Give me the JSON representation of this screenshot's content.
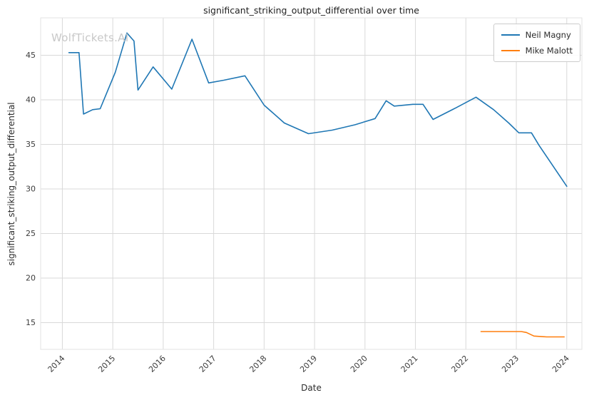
{
  "watermark": "WolfTickets.AI",
  "chart_data": {
    "type": "line",
    "title": "significant_striking_output_differential over time",
    "xlabel": "Date",
    "ylabel": "significant_striking_output_differential",
    "grid": true,
    "legend_position": "upper right",
    "xlim": [
      2013.57,
      2024.3
    ],
    "ylim": [
      12.0,
      49.2
    ],
    "x_ticks": [
      2014,
      2015,
      2016,
      2017,
      2018,
      2019,
      2020,
      2021,
      2022,
      2023,
      2024
    ],
    "y_ticks": [
      15,
      20,
      25,
      30,
      35,
      40,
      45
    ],
    "series": [
      {
        "name": "Neil Magny",
        "color": "#1f77b4",
        "x": [
          2014.13,
          2014.33,
          2014.42,
          2014.6,
          2014.75,
          2015.05,
          2015.28,
          2015.42,
          2015.5,
          2015.8,
          2016.17,
          2016.57,
          2016.9,
          2017.2,
          2017.62,
          2018.0,
          2018.4,
          2018.88,
          2019.35,
          2019.8,
          2020.2,
          2020.42,
          2020.58,
          2020.95,
          2021.15,
          2021.35,
          2021.8,
          2022.2,
          2022.55,
          2022.85,
          2023.05,
          2023.3,
          2023.45,
          2024.0
        ],
        "y": [
          45.3,
          45.3,
          38.4,
          38.9,
          39.0,
          43.1,
          47.5,
          46.6,
          41.1,
          43.7,
          41.2,
          46.8,
          41.9,
          42.2,
          42.7,
          39.4,
          37.4,
          36.2,
          36.6,
          37.2,
          37.9,
          39.9,
          39.3,
          39.5,
          39.5,
          37.8,
          39.1,
          40.3,
          38.9,
          37.4,
          36.3,
          36.3,
          34.9,
          30.3
        ]
      },
      {
        "name": "Mike Malott",
        "color": "#ff7f0e",
        "x": [
          2022.3,
          2022.75,
          2023.1,
          2023.2,
          2023.35,
          2023.6,
          2023.95
        ],
        "y": [
          14.0,
          14.0,
          14.0,
          13.9,
          13.5,
          13.4,
          13.4
        ]
      }
    ]
  }
}
